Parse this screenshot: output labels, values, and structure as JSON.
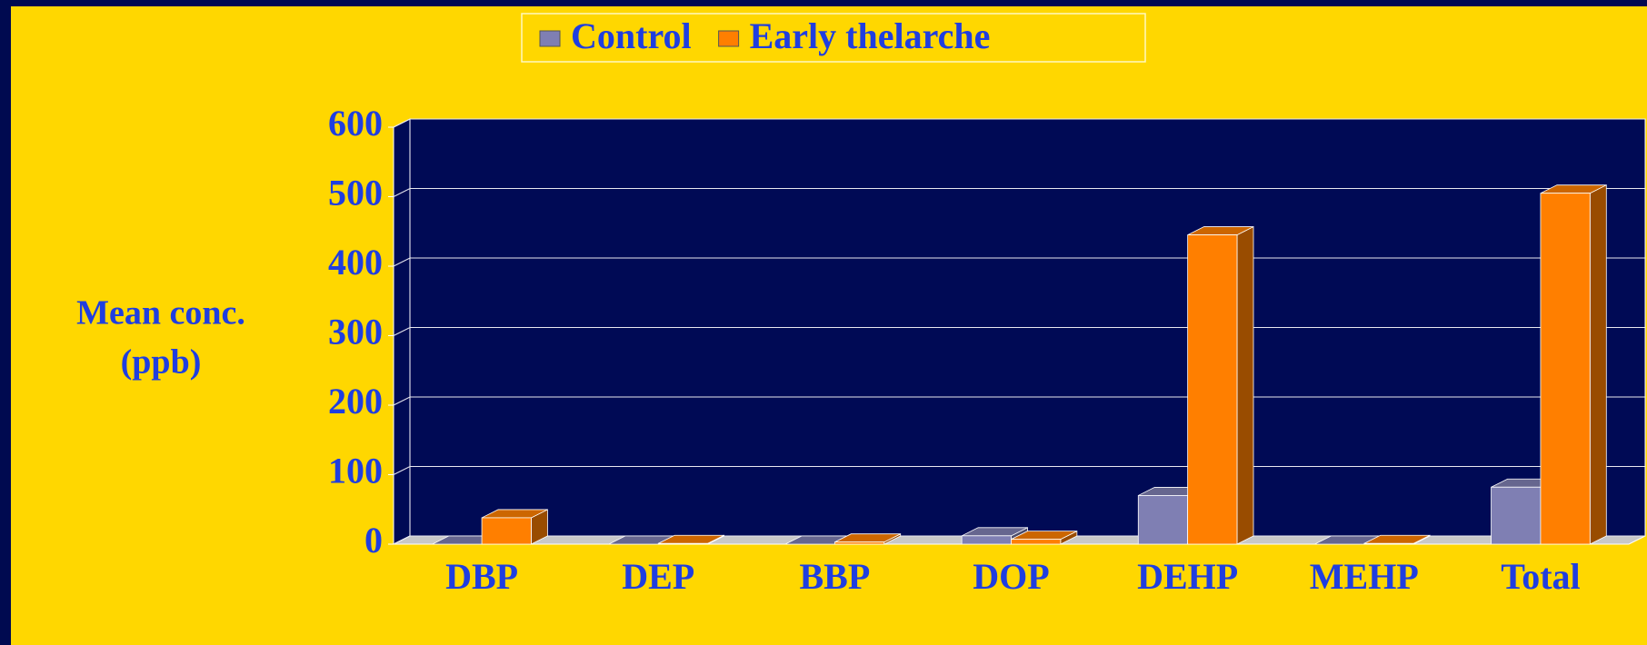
{
  "chart_data": {
    "type": "bar3d",
    "y_label": [
      "Mean conc.",
      "(ppb)"
    ],
    "categories": [
      "DBP",
      "DEP",
      "BBP",
      "DOP",
      "DEHP",
      "MEHP",
      "Total"
    ],
    "series": [
      {
        "name": "Control",
        "color": "#7f7fb3",
        "values": [
          0,
          0,
          0,
          12,
          70,
          0,
          82
        ]
      },
      {
        "name": "Early thelarche",
        "color": "#ff7f00",
        "values": [
          38,
          1,
          3,
          7,
          445,
          1,
          505
        ]
      }
    ],
    "ylim": [
      0,
      600
    ],
    "yticks": [
      0,
      100,
      200,
      300,
      400,
      500,
      600
    ],
    "grid": true,
    "legend": "top"
  }
}
